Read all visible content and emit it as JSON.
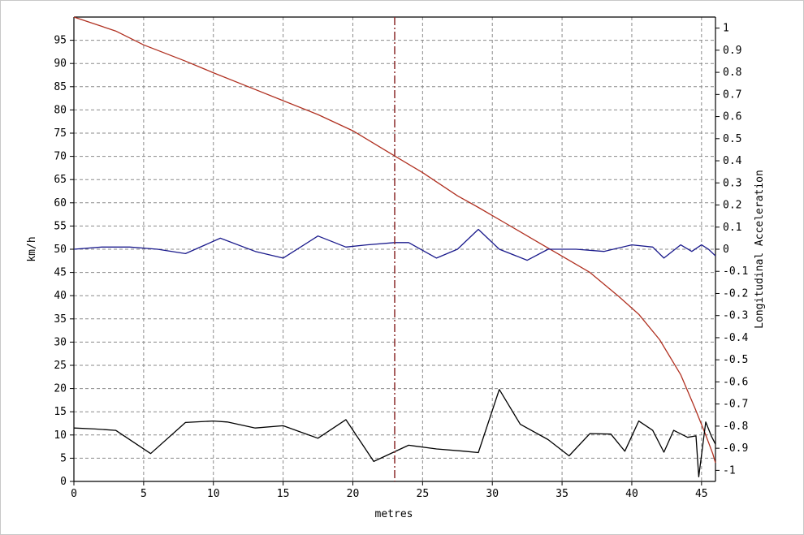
{
  "chart_data": {
    "type": "line",
    "title": "",
    "xlabel": "metres",
    "ylabel": "km/h",
    "y2label": "Longitudinal Acceleration",
    "xlim": [
      0,
      46
    ],
    "ylim": [
      0,
      100
    ],
    "y2lim": [
      -1.05,
      1.05
    ],
    "grid": true,
    "x_ticks": [
      0,
      5,
      10,
      15,
      20,
      25,
      30,
      35,
      40,
      45
    ],
    "y_ticks": [
      0,
      5,
      10,
      15,
      20,
      25,
      30,
      35,
      40,
      45,
      50,
      55,
      60,
      65,
      70,
      75,
      80,
      85,
      90,
      95
    ],
    "y2_ticks": [
      -1,
      -0.9,
      -0.8,
      -0.7,
      -0.6,
      -0.5,
      -0.4,
      -0.3,
      -0.2,
      -0.1,
      0,
      0.1,
      0.2,
      0.3,
      0.4,
      0.5,
      0.6,
      0.7,
      0.8,
      0.9,
      1
    ],
    "y2_tick_labels": [
      "-1",
      "-0.9",
      "-0.8",
      "-0.7",
      "-0.6",
      "-0.5",
      "-0.4",
      "-0.3",
      "-0.2",
      "-0.1",
      "0",
      "0.1",
      "0.2",
      "0.3",
      "0.4",
      "0.5",
      "0.6",
      "0.7",
      "0.8",
      "0.9",
      "1"
    ],
    "marker_line": {
      "x": 23,
      "color": "#8b2a2a",
      "style": "dash-dot"
    },
    "series": [
      {
        "axis": "left",
        "color": "#b03020",
        "x": [
          0,
          3,
          5,
          8,
          10,
          12.5,
          15,
          17.5,
          20,
          22.5,
          25,
          27.5,
          29,
          31,
          33,
          35,
          37,
          39,
          40.5,
          42,
          43.5,
          44.5,
          45.3,
          45.8,
          46
        ],
        "y": [
          100,
          97,
          94,
          90.5,
          88,
          85,
          82,
          79,
          75.5,
          71,
          66.5,
          61.5,
          59,
          55.5,
          52,
          48.5,
          45,
          40,
          36,
          30.5,
          23,
          16,
          10,
          6,
          4
        ]
      },
      {
        "axis": "right",
        "color": "#1a1a8c",
        "x": [
          0,
          2,
          4,
          6,
          8,
          10.5,
          13,
          15,
          17.5,
          19.5,
          21,
          23,
          24,
          26,
          27.5,
          29,
          30.5,
          32.5,
          34,
          36,
          38,
          40,
          41.5,
          42.3,
          43.5,
          44.3,
          45,
          45.5,
          46
        ],
        "y": [
          0,
          0.01,
          0.01,
          0,
          -0.02,
          0.05,
          -0.01,
          -0.04,
          0.06,
          0.01,
          0.02,
          0.03,
          0.03,
          -0.04,
          0,
          0.09,
          0,
          -0.05,
          0,
          0,
          -0.01,
          0.02,
          0.01,
          -0.04,
          0.02,
          -0.01,
          0.02,
          0,
          -0.03
        ]
      },
      {
        "axis": "left",
        "color": "#000000",
        "x": [
          0,
          1.5,
          3,
          5.5,
          8,
          10,
          11,
          13,
          15,
          17.5,
          19.5,
          21.5,
          24,
          26,
          28,
          29,
          30.5,
          32,
          34,
          35.5,
          37,
          38.5,
          39.5,
          40.5,
          41.5,
          42.3,
          43,
          44,
          44.6,
          44.8,
          45.3,
          45.7,
          46
        ],
        "y": [
          11.5,
          11.3,
          11,
          6,
          12.7,
          13,
          12.8,
          11.5,
          12,
          9.3,
          13.3,
          4.3,
          7.8,
          7,
          6.5,
          6.2,
          19.8,
          12.3,
          9,
          5.5,
          10.3,
          10.2,
          6.5,
          13,
          11,
          6.3,
          11,
          9.5,
          9.8,
          1,
          12.8,
          9.8,
          8
        ]
      }
    ]
  }
}
